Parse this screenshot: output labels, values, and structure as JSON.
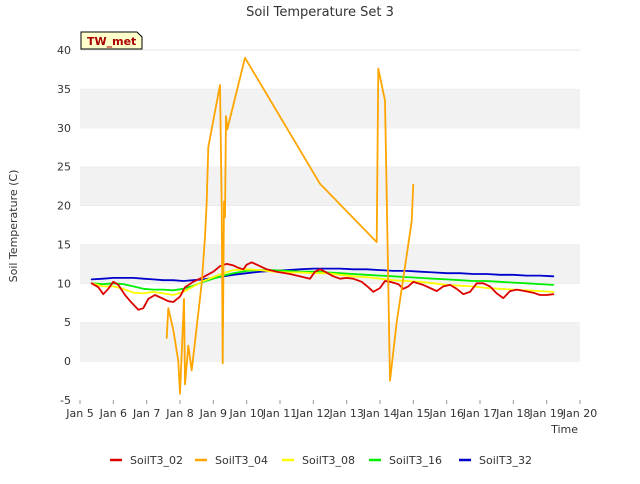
{
  "chart_data": {
    "type": "line",
    "title": "Soil Temperature Set 3",
    "xlabel": "Time",
    "ylabel": "Soil Temperature (C)",
    "site_tag": "TW_met",
    "x_ticks": [
      "Jan 5",
      "Jan 6",
      "Jan 7",
      "Jan 8",
      "Jan 9",
      "Jan 10",
      "Jan 11",
      "Jan 12",
      "Jan 13",
      "Jan 14",
      "Jan 15",
      "Jan 16",
      "Jan 17",
      "Jan 18",
      "Jan 19",
      "Jan 20"
    ],
    "xlim": [
      5,
      20
    ],
    "y_ticks": [
      -5,
      0,
      5,
      10,
      15,
      20,
      25,
      30,
      35,
      40
    ],
    "ylim": [
      -5,
      40
    ],
    "grid": "horizontal alternating bands",
    "legend_position": "bottom",
    "series": [
      {
        "name": "SoilT3_02",
        "color": "#dd0000",
        "points": [
          [
            5.35,
            10.0
          ],
          [
            5.55,
            9.5
          ],
          [
            5.7,
            8.6
          ],
          [
            5.85,
            9.3
          ],
          [
            6.0,
            10.2
          ],
          [
            6.15,
            9.8
          ],
          [
            6.35,
            8.5
          ],
          [
            6.55,
            7.5
          ],
          [
            6.75,
            6.6
          ],
          [
            6.9,
            6.8
          ],
          [
            7.05,
            8.0
          ],
          [
            7.25,
            8.5
          ],
          [
            7.45,
            8.1
          ],
          [
            7.65,
            7.7
          ],
          [
            7.8,
            7.6
          ],
          [
            8.0,
            8.3
          ],
          [
            8.15,
            9.5
          ],
          [
            8.4,
            10.2
          ],
          [
            8.7,
            10.8
          ],
          [
            9.0,
            11.5
          ],
          [
            9.2,
            12.2
          ],
          [
            9.4,
            12.5
          ],
          [
            9.6,
            12.3
          ],
          [
            9.75,
            12.0
          ],
          [
            9.9,
            11.8
          ],
          [
            10.0,
            12.4
          ],
          [
            10.15,
            12.7
          ],
          [
            10.4,
            12.2
          ],
          [
            10.6,
            11.8
          ],
          [
            10.9,
            11.5
          ],
          [
            11.3,
            11.2
          ],
          [
            11.7,
            10.8
          ],
          [
            11.9,
            10.6
          ],
          [
            12.05,
            11.5
          ],
          [
            12.2,
            11.8
          ],
          [
            12.35,
            11.5
          ],
          [
            12.6,
            10.9
          ],
          [
            12.8,
            10.6
          ],
          [
            13.0,
            10.7
          ],
          [
            13.2,
            10.6
          ],
          [
            13.45,
            10.2
          ],
          [
            13.65,
            9.5
          ],
          [
            13.8,
            8.9
          ],
          [
            14.0,
            9.4
          ],
          [
            14.15,
            10.3
          ],
          [
            14.3,
            10.2
          ],
          [
            14.55,
            9.9
          ],
          [
            14.7,
            9.3
          ],
          [
            14.85,
            9.6
          ],
          [
            15.0,
            10.2
          ],
          [
            15.3,
            9.8
          ],
          [
            15.5,
            9.4
          ],
          [
            15.7,
            9.0
          ],
          [
            15.9,
            9.6
          ],
          [
            16.1,
            9.8
          ],
          [
            16.3,
            9.3
          ],
          [
            16.5,
            8.6
          ],
          [
            16.7,
            8.9
          ],
          [
            16.9,
            10.0
          ],
          [
            17.1,
            10.0
          ],
          [
            17.3,
            9.6
          ],
          [
            17.5,
            8.7
          ],
          [
            17.7,
            8.1
          ],
          [
            17.9,
            9.0
          ],
          [
            18.1,
            9.2
          ],
          [
            18.35,
            9.0
          ],
          [
            18.6,
            8.8
          ],
          [
            18.8,
            8.5
          ],
          [
            19.0,
            8.5
          ],
          [
            19.2,
            8.6
          ]
        ]
      },
      {
        "name": "SoilT3_04",
        "color": "#ffa500",
        "segments": [
          [
            [
              7.6,
              3.0
            ],
            [
              7.65,
              6.8
            ],
            [
              7.8,
              4.0
            ],
            [
              7.95,
              0.0
            ],
            [
              8.0,
              -4.2
            ],
            [
              8.08,
              4.0
            ],
            [
              8.12,
              8.0
            ],
            [
              8.15,
              -3.0
            ],
            [
              8.25,
              2.0
            ],
            [
              8.35,
              -1.2
            ],
            [
              8.65,
              10.0
            ],
            [
              8.75,
              16.0
            ],
            [
              8.8,
              20.5
            ],
            [
              8.85,
              27.5
            ],
            [
              9.2,
              35.5
            ],
            [
              9.25,
              20.0
            ],
            [
              9.28,
              -0.3
            ],
            [
              9.32,
              20.5
            ],
            [
              9.35,
              18.5
            ],
            [
              9.38,
              31.5
            ],
            [
              9.42,
              29.8
            ],
            [
              9.95,
              39.0
            ],
            [
              12.2,
              22.8
            ],
            [
              13.9,
              15.3
            ],
            [
              13.95,
              37.6
            ],
            [
              14.15,
              33.5
            ],
            [
              14.3,
              -2.5
            ],
            [
              14.5,
              5.0
            ],
            [
              14.85,
              15.0
            ],
            [
              14.95,
              18.0
            ],
            [
              15.0,
              22.7
            ]
          ]
        ]
      },
      {
        "name": "SoilT3_08",
        "color": "#ffff00",
        "points": [
          [
            5.35,
            10.0
          ],
          [
            5.7,
            9.6
          ],
          [
            6.0,
            9.6
          ],
          [
            6.3,
            9.3
          ],
          [
            6.6,
            8.8
          ],
          [
            6.9,
            8.7
          ],
          [
            7.2,
            8.9
          ],
          [
            7.5,
            8.7
          ],
          [
            7.8,
            8.5
          ],
          [
            8.1,
            8.9
          ],
          [
            8.4,
            9.6
          ],
          [
            8.7,
            10.3
          ],
          [
            9.0,
            10.8
          ],
          [
            9.3,
            11.3
          ],
          [
            9.6,
            11.7
          ],
          [
            10.0,
            11.8
          ],
          [
            10.4,
            11.7
          ],
          [
            10.8,
            11.5
          ],
          [
            11.2,
            11.4
          ],
          [
            11.6,
            11.4
          ],
          [
            12.0,
            11.3
          ],
          [
            12.4,
            11.3
          ],
          [
            12.8,
            11.1
          ],
          [
            13.2,
            10.9
          ],
          [
            13.6,
            10.8
          ],
          [
            14.0,
            10.6
          ],
          [
            14.4,
            10.4
          ],
          [
            14.8,
            10.3
          ],
          [
            15.2,
            10.2
          ],
          [
            15.6,
            10.0
          ],
          [
            16.0,
            9.8
          ],
          [
            16.4,
            9.7
          ],
          [
            16.8,
            9.6
          ],
          [
            17.2,
            9.4
          ],
          [
            17.6,
            9.3
          ],
          [
            18.0,
            9.2
          ],
          [
            18.4,
            9.1
          ],
          [
            18.8,
            9.0
          ],
          [
            19.2,
            8.9
          ]
        ]
      },
      {
        "name": "SoilT3_16",
        "color": "#00ee00",
        "points": [
          [
            5.35,
            10.0
          ],
          [
            5.7,
            9.9
          ],
          [
            6.0,
            10.0
          ],
          [
            6.3,
            9.9
          ],
          [
            6.6,
            9.6
          ],
          [
            6.9,
            9.3
          ],
          [
            7.2,
            9.2
          ],
          [
            7.5,
            9.2
          ],
          [
            7.8,
            9.1
          ],
          [
            8.1,
            9.3
          ],
          [
            8.4,
            9.7
          ],
          [
            8.7,
            10.2
          ],
          [
            9.0,
            10.6
          ],
          [
            9.3,
            11.0
          ],
          [
            9.6,
            11.3
          ],
          [
            10.0,
            11.6
          ],
          [
            10.4,
            11.7
          ],
          [
            10.8,
            11.7
          ],
          [
            11.2,
            11.6
          ],
          [
            11.6,
            11.5
          ],
          [
            12.0,
            11.5
          ],
          [
            12.4,
            11.4
          ],
          [
            12.8,
            11.3
          ],
          [
            13.2,
            11.2
          ],
          [
            13.6,
            11.1
          ],
          [
            14.0,
            11.0
          ],
          [
            14.4,
            10.9
          ],
          [
            14.8,
            10.8
          ],
          [
            15.2,
            10.7
          ],
          [
            15.6,
            10.6
          ],
          [
            16.0,
            10.5
          ],
          [
            16.4,
            10.4
          ],
          [
            16.8,
            10.3
          ],
          [
            17.2,
            10.3
          ],
          [
            17.6,
            10.2
          ],
          [
            18.0,
            10.1
          ],
          [
            18.4,
            10.0
          ],
          [
            18.8,
            9.9
          ],
          [
            19.2,
            9.8
          ]
        ]
      },
      {
        "name": "SoilT3_32",
        "color": "#0000cc",
        "points": [
          [
            5.35,
            10.5
          ],
          [
            5.7,
            10.6
          ],
          [
            6.0,
            10.7
          ],
          [
            6.3,
            10.7
          ],
          [
            6.6,
            10.7
          ],
          [
            6.9,
            10.6
          ],
          [
            7.2,
            10.5
          ],
          [
            7.5,
            10.4
          ],
          [
            7.8,
            10.4
          ],
          [
            8.1,
            10.3
          ],
          [
            8.4,
            10.4
          ],
          [
            8.7,
            10.5
          ],
          [
            9.0,
            10.7
          ],
          [
            9.3,
            10.9
          ],
          [
            9.6,
            11.1
          ],
          [
            10.0,
            11.3
          ],
          [
            10.4,
            11.5
          ],
          [
            10.8,
            11.6
          ],
          [
            11.2,
            11.7
          ],
          [
            11.6,
            11.8
          ],
          [
            12.0,
            11.9
          ],
          [
            12.4,
            11.9
          ],
          [
            12.8,
            11.9
          ],
          [
            13.2,
            11.8
          ],
          [
            13.6,
            11.8
          ],
          [
            14.0,
            11.7
          ],
          [
            14.4,
            11.6
          ],
          [
            14.8,
            11.6
          ],
          [
            15.2,
            11.5
          ],
          [
            15.6,
            11.4
          ],
          [
            16.0,
            11.3
          ],
          [
            16.4,
            11.3
          ],
          [
            16.8,
            11.2
          ],
          [
            17.2,
            11.2
          ],
          [
            17.6,
            11.1
          ],
          [
            18.0,
            11.1
          ],
          [
            18.4,
            11.0
          ],
          [
            18.8,
            11.0
          ],
          [
            19.2,
            10.9
          ]
        ]
      }
    ]
  }
}
